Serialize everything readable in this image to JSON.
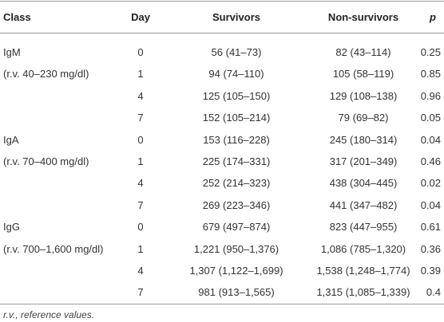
{
  "table": {
    "header": [
      "Class",
      "Day",
      "Survivors",
      "Non-survivors",
      "p"
    ],
    "rows": [
      {
        "class": "IgM",
        "day": "0",
        "survivors": "56 (41–73)",
        "non_survivors": "82 (43–114)",
        "p": "0.25"
      },
      {
        "class": "(r.v. 40–230 mg/dl)",
        "day": "1",
        "survivors": "94 (74–110)",
        "non_survivors": "105 (58–119)",
        "p": "0.85"
      },
      {
        "day": "4",
        "survivors": "125 (105–150)",
        "non_survivors": "129 (108–138)",
        "p": "0.96"
      },
      {
        "day": "7",
        "survivors": "152 (105–214)",
        "non_survivors": "79 (69–82)",
        "p": "0.05"
      },
      {
        "class": "IgA",
        "day": "0",
        "survivors": "153 (116–228)",
        "non_survivors": "245 (180–314)",
        "p": "0.04"
      },
      {
        "class": "(r.v. 70–400 mg/dl)",
        "day": "1",
        "survivors": "225 (174–331)",
        "non_survivors": "317 (201–349)",
        "p": "0.46"
      },
      {
        "day": "4",
        "survivors": "252 (214–323)",
        "non_survivors": "438 (304–445)",
        "p": "0.02"
      },
      {
        "day": "7",
        "survivors": "269 (223–346)",
        "non_survivors": "441 (347–482)",
        "p": "0.04"
      },
      {
        "class": "IgG",
        "day": "0",
        "survivors": "679 (497–874)",
        "non_survivors": "823 (447–955)",
        "p": "0.61"
      },
      {
        "class": "(r.v. 700–1,600 mg/dl)",
        "day": "1",
        "survivors": "1,221 (950–1,376)",
        "non_survivors": "1,086 (785–1,320)",
        "p": "0.36"
      },
      {
        "day": "4",
        "survivors": "1,307 (1,122–1,699)",
        "non_survivors": "1,538 (1,248–1,774)",
        "p": "0.39"
      },
      {
        "day": "7",
        "survivors": "981 (913–1,565)",
        "non_survivors": "1,315 (1,085–1,339)",
        "p": "0.4"
      }
    ],
    "footnote": "r.v., reference values."
  }
}
